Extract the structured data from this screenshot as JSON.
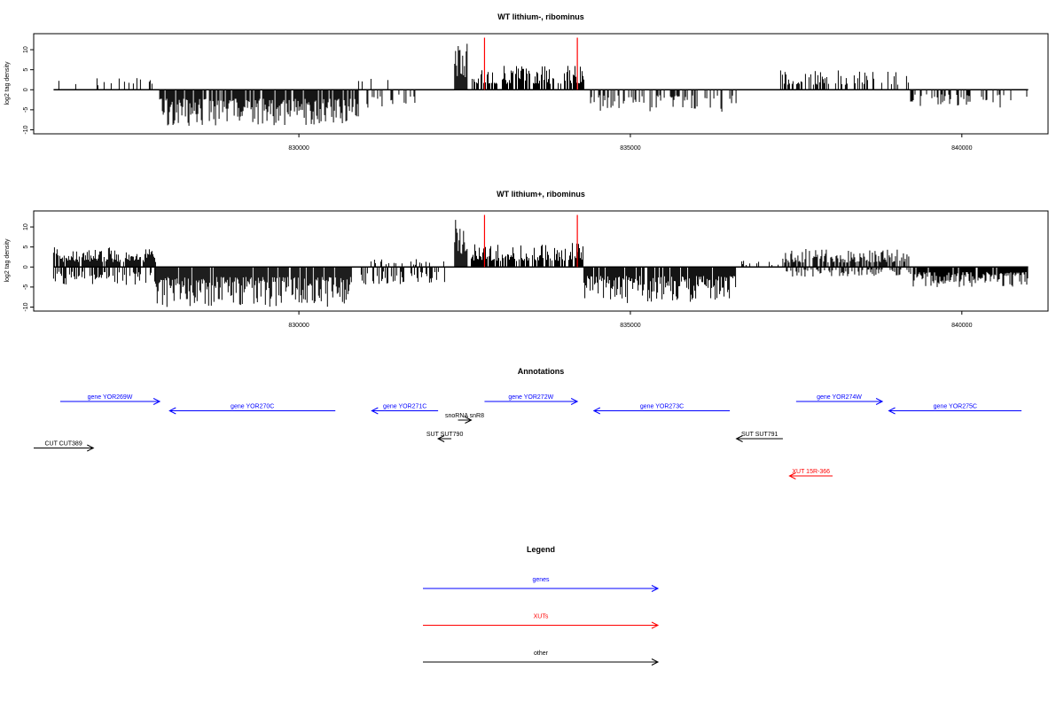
{
  "chart_data": [
    {
      "type": "bar",
      "title": "WT lithium-, ribominus",
      "ylabel": "log2 tag density",
      "xlabel": "",
      "xlim": [
        826000,
        841300
      ],
      "ylim": [
        -11,
        14
      ],
      "yticks": [
        -10,
        -5,
        0,
        5,
        10
      ],
      "yticklabels": [
        "-10",
        "-5",
        "0",
        "5",
        "10"
      ],
      "xticks": [
        830000,
        835000,
        840000
      ],
      "xticklabels": [
        "830000",
        "835000",
        "840000"
      ],
      "baseline_range": [
        826300,
        841000
      ],
      "marker_lines": [
        832800,
        834200
      ],
      "segments": [
        {
          "range": [
            826300,
            827850
          ],
          "strand": "+",
          "max": 4.5,
          "density": 0.15
        },
        {
          "range": [
            827900,
            830900
          ],
          "strand": "-",
          "max": 9,
          "density": 0.85
        },
        {
          "range": [
            830900,
            831400
          ],
          "strand": "+",
          "max": 3,
          "density": 0.12
        },
        {
          "range": [
            831000,
            831750
          ],
          "strand": "-",
          "max": 4.5,
          "density": 0.3
        },
        {
          "range": [
            832350,
            832550
          ],
          "strand": "+",
          "max": 12.5,
          "density": 1
        },
        {
          "range": [
            832600,
            834300
          ],
          "strand": "+",
          "max": 6,
          "density": 0.7
        },
        {
          "range": [
            834400,
            836600
          ],
          "strand": "-",
          "max": 5.5,
          "density": 0.35
        },
        {
          "range": [
            837200,
            839200
          ],
          "strand": "+",
          "max": 5,
          "density": 0.35
        },
        {
          "range": [
            839200,
            841000
          ],
          "strand": "-",
          "max": 4.5,
          "density": 0.3
        }
      ]
    },
    {
      "type": "bar",
      "title": "WT lithium+, ribominus",
      "ylabel": "log2 tag density",
      "xlabel": "",
      "xlim": [
        826000,
        841300
      ],
      "ylim": [
        -11,
        14
      ],
      "yticks": [
        -10,
        -5,
        0,
        5,
        10
      ],
      "yticklabels": [
        "-10",
        "-5",
        "0",
        "5",
        "10"
      ],
      "xticks": [
        830000,
        835000,
        840000
      ],
      "xticklabels": [
        "830000",
        "835000",
        "840000"
      ],
      "baseline_range": [
        826300,
        841000
      ],
      "marker_lines": [
        832800,
        834200
      ],
      "segments": [
        {
          "range": [
            826300,
            827850
          ],
          "strand": "+",
          "max": 5,
          "density": 0.9
        },
        {
          "range": [
            826300,
            827850
          ],
          "strand": "-",
          "max": 4.5,
          "density": 0.5
        },
        {
          "range": [
            827850,
            830800
          ],
          "strand": "-",
          "max": 10,
          "density": 0.95
        },
        {
          "range": [
            830900,
            832200
          ],
          "strand": "-",
          "max": 4.5,
          "density": 0.4
        },
        {
          "range": [
            830900,
            832200
          ],
          "strand": "+",
          "max": 2,
          "density": 0.15
        },
        {
          "range": [
            832350,
            832550
          ],
          "strand": "+",
          "max": 13,
          "density": 1
        },
        {
          "range": [
            832600,
            834300
          ],
          "strand": "+",
          "max": 6,
          "density": 0.75
        },
        {
          "range": [
            834300,
            836600
          ],
          "strand": "-",
          "max": 9,
          "density": 0.9
        },
        {
          "range": [
            836600,
            837300
          ],
          "strand": "+",
          "max": 2,
          "density": 0.2
        },
        {
          "range": [
            837300,
            839200
          ],
          "strand": "+",
          "max": 4.5,
          "density": 0.7
        },
        {
          "range": [
            837300,
            839200
          ],
          "strand": "-",
          "max": 2.5,
          "density": 0.4
        },
        {
          "range": [
            839200,
            841000
          ],
          "strand": "-",
          "max": 5,
          "density": 0.9
        }
      ]
    }
  ],
  "annotations": {
    "title": "Annotations",
    "colors": {
      "gene": "#0000ff",
      "xut": "#ff0000",
      "other": "#000000"
    },
    "features": [
      {
        "label": "gene YOR269W",
        "start": 826400,
        "end": 827900,
        "strand": "+",
        "row": 0,
        "kind": "gene"
      },
      {
        "label": "gene YOR270C",
        "start": 828050,
        "end": 830550,
        "strand": "-",
        "row": 1,
        "kind": "gene"
      },
      {
        "label": "gene YOR271C",
        "start": 831100,
        "end": 832100,
        "strand": "-",
        "row": 1,
        "kind": "gene"
      },
      {
        "label": "snoRNA snR8",
        "start": 832400,
        "end": 832600,
        "strand": "+",
        "row": 2,
        "kind": "other"
      },
      {
        "label": "gene YOR272W",
        "start": 832800,
        "end": 834200,
        "strand": "+",
        "row": 0,
        "kind": "gene"
      },
      {
        "label": "gene YOR273C",
        "start": 834450,
        "end": 836500,
        "strand": "-",
        "row": 1,
        "kind": "gene"
      },
      {
        "label": "gene YOR274W",
        "start": 837500,
        "end": 838800,
        "strand": "+",
        "row": 0,
        "kind": "gene"
      },
      {
        "label": "gene YOR275C",
        "start": 838900,
        "end": 840900,
        "strand": "-",
        "row": 1,
        "kind": "gene"
      },
      {
        "label": "SUT SUT790",
        "start": 832100,
        "end": 832300,
        "strand": "-",
        "row": 4,
        "kind": "other"
      },
      {
        "label": "SUT SUT791",
        "start": 836600,
        "end": 837300,
        "strand": "-",
        "row": 4,
        "kind": "other"
      },
      {
        "label": "CUT CUT389",
        "start": 826000,
        "end": 826900,
        "strand": "+",
        "row": 5,
        "kind": "other"
      },
      {
        "label": "XUT 15R-366",
        "start": 837400,
        "end": 838050,
        "strand": "-",
        "row": 8,
        "kind": "xut"
      }
    ]
  },
  "legend": {
    "title": "Legend",
    "items": [
      {
        "label": "genes",
        "color": "#0000ff"
      },
      {
        "label": "XUTs",
        "color": "#ff0000"
      },
      {
        "label": "other",
        "color": "#000000"
      }
    ]
  }
}
